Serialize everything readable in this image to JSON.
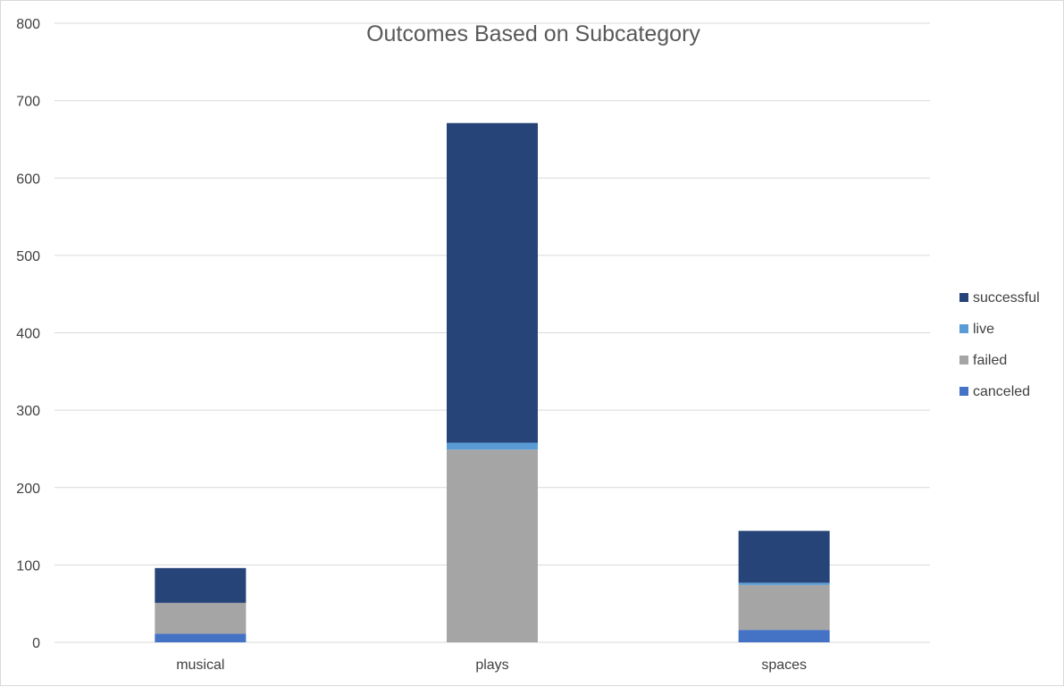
{
  "chart_data": {
    "type": "bar",
    "stacked": true,
    "title": "Outcomes Based on Subcategory",
    "xlabel": "",
    "ylabel": "",
    "categories": [
      "musical",
      "plays",
      "spaces"
    ],
    "ylim": [
      0,
      800
    ],
    "yticks": [
      0,
      100,
      200,
      300,
      400,
      500,
      600,
      700,
      800
    ],
    "grid": true,
    "legend_position": "right",
    "series": [
      {
        "name": "canceled",
        "color": "#4472c4",
        "values": [
          11,
          0,
          16
        ]
      },
      {
        "name": "failed",
        "color": "#a5a5a5",
        "values": [
          40,
          249,
          58
        ]
      },
      {
        "name": "live",
        "color": "#5b9bd5",
        "values": [
          0,
          9,
          3
        ]
      },
      {
        "name": "successful",
        "color": "#264478",
        "values": [
          45,
          413,
          67
        ]
      }
    ],
    "legend_order": [
      "successful",
      "live",
      "failed",
      "canceled"
    ]
  }
}
